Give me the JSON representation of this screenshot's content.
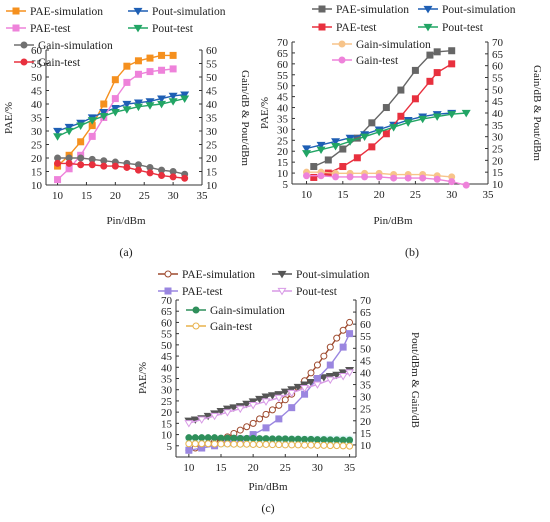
{
  "chart_data": [
    {
      "panel_label": "(a)",
      "type": "line",
      "xlabel": "Pin/dBm",
      "ylabel_left": "PAE/%",
      "ylabel_right": "Gain/dB & Pout/dBm",
      "xlim": [
        8,
        35
      ],
      "xticks": [
        "10",
        "15",
        "20",
        "25",
        "30",
        "35"
      ],
      "ylim_left": [
        10,
        60
      ],
      "yticks_left": [
        "10",
        "15",
        "20",
        "25",
        "30",
        "35",
        "40",
        "45",
        "50",
        "55",
        "60"
      ],
      "ylim_right": [
        10,
        60
      ],
      "yticks_right": [
        "10",
        "15",
        "20",
        "25",
        "30",
        "35",
        "40",
        "45",
        "50",
        "55",
        "60"
      ],
      "legend": "top-left",
      "series": [
        {
          "name": "PAE-simulation",
          "axis": "left",
          "color": "#F5901E",
          "marker": "square",
          "open": false,
          "x": [
            10,
            12,
            14,
            16,
            18,
            20,
            22,
            24,
            26,
            28,
            30
          ],
          "y": [
            17,
            21,
            26,
            32,
            40,
            49,
            54,
            56,
            57,
            58,
            58
          ]
        },
        {
          "name": "Pout-simulation",
          "axis": "right",
          "color": "#1E5FB4",
          "marker": "tri-down",
          "open": false,
          "x": [
            10,
            12,
            14,
            16,
            18,
            20,
            22,
            24,
            26,
            28,
            30,
            32
          ],
          "y": [
            30,
            31.5,
            33,
            35,
            37,
            38.5,
            40,
            40.5,
            41,
            42,
            43,
            43.5
          ]
        },
        {
          "name": "PAE-test",
          "axis": "left",
          "color": "#EE82DA",
          "marker": "square",
          "open": false,
          "x": [
            10,
            12,
            14,
            16,
            18,
            20,
            22,
            24,
            26,
            28,
            30
          ],
          "y": [
            12,
            16,
            21,
            28,
            35,
            42,
            48,
            51,
            52,
            52.5,
            53
          ]
        },
        {
          "name": "Pout-test",
          "axis": "right",
          "color": "#22A565",
          "marker": "tri-down",
          "open": false,
          "x": [
            10,
            12,
            14,
            16,
            18,
            20,
            22,
            24,
            26,
            28,
            30,
            32
          ],
          "y": [
            28,
            30,
            32,
            34,
            35.5,
            37,
            38,
            39,
            39.5,
            40,
            41,
            42
          ]
        },
        {
          "name": "Gain-simulation",
          "axis": "right",
          "color": "#707070",
          "marker": "circle",
          "open": false,
          "x": [
            10,
            12,
            14,
            16,
            18,
            20,
            22,
            24,
            26,
            28,
            30,
            32
          ],
          "y": [
            20,
            20,
            20,
            19.5,
            19,
            18.5,
            18,
            17.5,
            16.5,
            15.5,
            15,
            14
          ]
        },
        {
          "name": "Gain-test",
          "axis": "right",
          "color": "#E8303E",
          "marker": "circle",
          "open": false,
          "x": [
            10,
            12,
            14,
            16,
            18,
            20,
            22,
            24,
            26,
            28,
            30,
            32
          ],
          "y": [
            18,
            18,
            17.5,
            17.5,
            17,
            17,
            16.5,
            15.5,
            14.5,
            13.5,
            13,
            12.5
          ]
        }
      ]
    },
    {
      "panel_label": "(b)",
      "type": "line",
      "xlabel": "Pin/dBm",
      "ylabel_left": "PAE/%",
      "ylabel_right": "Gain/dB & Pout/dBm",
      "xlim": [
        8,
        35
      ],
      "xticks": [
        "10",
        "15",
        "20",
        "25",
        "30",
        "35"
      ],
      "ylim_left": [
        5,
        70
      ],
      "yticks_left": [
        "5",
        "10",
        "15",
        "20",
        "25",
        "30",
        "35",
        "40",
        "45",
        "50",
        "55",
        "60",
        "65",
        "70"
      ],
      "ylim_right": [
        10,
        70
      ],
      "yticks_right": [
        "10",
        "15",
        "20",
        "25",
        "30",
        "35",
        "40",
        "45",
        "50",
        "55",
        "60",
        "65",
        "70"
      ],
      "legend": "top",
      "series": [
        {
          "name": "PAE-simulation",
          "axis": "left",
          "color": "#666666",
          "marker": "square",
          "open": false,
          "x": [
            11,
            13,
            15,
            17,
            19,
            21,
            23,
            25,
            27,
            28,
            30
          ],
          "y": [
            13,
            16,
            21,
            26,
            33,
            40,
            48,
            57,
            64,
            65.5,
            66
          ]
        },
        {
          "name": "Pout-simulation",
          "axis": "right",
          "color": "#1E5FB4",
          "marker": "tri-down",
          "open": false,
          "x": [
            10,
            12,
            14,
            16,
            18,
            20,
            22,
            24,
            26,
            28,
            30
          ],
          "y": [
            25,
            26.5,
            28,
            29.5,
            31,
            33,
            35,
            37,
            38.5,
            39.5,
            40
          ]
        },
        {
          "name": "PAE-test",
          "axis": "left",
          "color": "#E8303E",
          "marker": "square",
          "open": false,
          "x": [
            11,
            13,
            15,
            17,
            19,
            21,
            23,
            25,
            27,
            28,
            30
          ],
          "y": [
            8,
            10,
            13,
            17,
            22,
            28,
            36,
            44,
            52,
            56,
            60
          ]
        },
        {
          "name": "Pout-test",
          "axis": "right",
          "color": "#22A565",
          "marker": "tri-down",
          "open": false,
          "x": [
            10,
            12,
            14,
            16,
            18,
            20,
            22,
            24,
            26,
            28,
            30,
            32
          ],
          "y": [
            23,
            24.5,
            26,
            28,
            30,
            32,
            34,
            36,
            37.5,
            38.5,
            39.5,
            40
          ]
        },
        {
          "name": "Gain-simulation",
          "axis": "right",
          "color": "#F7C48A",
          "marker": "circle",
          "open": false,
          "x": [
            10,
            12,
            14,
            16,
            18,
            20,
            22,
            24,
            26,
            28,
            30
          ],
          "y": [
            15,
            15,
            14.5,
            14.5,
            14.5,
            14.5,
            14,
            14,
            14,
            13.5,
            13
          ]
        },
        {
          "name": "Gain-test",
          "axis": "right",
          "color": "#EE82DA",
          "marker": "circle",
          "open": false,
          "x": [
            10,
            12,
            14,
            16,
            18,
            20,
            22,
            24,
            26,
            28,
            30,
            32
          ],
          "y": [
            13.5,
            13.5,
            13,
            13,
            13,
            13,
            12.5,
            12.5,
            12.5,
            12,
            11,
            9.5
          ]
        }
      ]
    },
    {
      "panel_label": "(c)",
      "type": "line",
      "xlabel": "Pin/dBm",
      "ylabel_left": "PAE/%",
      "ylabel_right": "Pout/dBm & Gain/dB",
      "xlim": [
        8,
        36
      ],
      "xticks": [
        "10",
        "15",
        "20",
        "25",
        "30",
        "35"
      ],
      "ylim_left": [
        0,
        70
      ],
      "yticks_left": [
        "5",
        "10",
        "15",
        "20",
        "25",
        "30",
        "35",
        "40",
        "45",
        "50",
        "55",
        "60",
        "65",
        "70"
      ],
      "ylim_right": [
        5,
        70
      ],
      "yticks_right": [
        "10",
        "15",
        "20",
        "25",
        "30",
        "35",
        "40",
        "45",
        "50",
        "55",
        "60",
        "65",
        "70"
      ],
      "legend": "top-left",
      "series": [
        {
          "name": "PAE-simulation",
          "axis": "left",
          "color": "#9E4A2E",
          "marker": "circle",
          "open": true,
          "x": [
            10,
            11,
            12,
            13,
            14,
            15,
            16,
            17,
            18,
            19,
            20,
            21,
            22,
            23,
            24,
            25,
            26,
            27,
            28,
            29,
            30,
            31,
            32,
            33,
            34,
            35
          ],
          "y": [
            3,
            4,
            5,
            6,
            7,
            8,
            9,
            10.5,
            12,
            13.5,
            15,
            17,
            19,
            21,
            23,
            25.5,
            28,
            31,
            34,
            37.5,
            41,
            45,
            49,
            53,
            56.5,
            60
          ]
        },
        {
          "name": "Pout-simulation",
          "axis": "right",
          "color": "#555555",
          "marker": "tri-down",
          "open": false,
          "x": [
            10,
            11,
            12,
            13,
            14,
            15,
            16,
            17,
            18,
            19,
            20,
            21,
            22,
            23,
            24,
            25,
            26,
            27,
            28,
            29,
            30,
            31,
            32,
            33,
            34,
            35
          ],
          "y": [
            20,
            20.5,
            21,
            22,
            23,
            24,
            25,
            25.5,
            26,
            27,
            28,
            29,
            30,
            30.5,
            31,
            32,
            33,
            34,
            35,
            36,
            37,
            38,
            38.5,
            39,
            40,
            41
          ]
        },
        {
          "name": "PAE-test",
          "axis": "left",
          "color": "#9A86E0",
          "marker": "square",
          "open": false,
          "x": [
            10,
            12,
            14,
            16,
            18,
            20,
            22,
            24,
            26,
            28,
            30,
            32,
            34,
            35
          ],
          "y": [
            3,
            4,
            5,
            6.5,
            8,
            10,
            13,
            17,
            22,
            28,
            35,
            41,
            49,
            55
          ]
        },
        {
          "name": "Pout-test",
          "axis": "right",
          "color": "#D89AE6",
          "marker": "tri-down",
          "open": true,
          "x": [
            10,
            12,
            14,
            16,
            18,
            20,
            22,
            24,
            26,
            28,
            30,
            32,
            34,
            35
          ],
          "y": [
            19,
            20.5,
            22,
            23.5,
            25,
            26.5,
            28,
            29.5,
            31.5,
            33.5,
            35,
            37,
            38.5,
            40
          ]
        },
        {
          "name": "Gain-simulation",
          "axis": "right",
          "color": "#2F8F5B",
          "marker": "circle",
          "open": false,
          "x": [
            10,
            11,
            12,
            13,
            14,
            15,
            16,
            17,
            18,
            19,
            20,
            21,
            22,
            23,
            24,
            25,
            26,
            27,
            28,
            29,
            30,
            31,
            32,
            33,
            34,
            35
          ],
          "y": [
            13,
            13,
            13,
            13,
            13,
            12.8,
            12.8,
            12.8,
            12.7,
            12.7,
            12.7,
            12.6,
            12.6,
            12.5,
            12.5,
            12.5,
            12.4,
            12.4,
            12.3,
            12.3,
            12.2,
            12.2,
            12.1,
            12.1,
            12,
            12
          ]
        },
        {
          "name": "Gain-test",
          "axis": "right",
          "color": "#E8B24C",
          "marker": "circle",
          "open": true,
          "x": [
            10,
            11,
            12,
            13,
            14,
            15,
            16,
            17,
            18,
            19,
            20,
            21,
            22,
            23,
            24,
            25,
            26,
            27,
            28,
            29,
            30,
            31,
            32,
            33,
            34,
            35
          ],
          "y": [
            10.5,
            10.5,
            10.5,
            10.5,
            10.4,
            10.4,
            10.4,
            10.3,
            10.3,
            10.3,
            10.2,
            10.2,
            10.2,
            10.1,
            10.1,
            10,
            10,
            10,
            9.9,
            9.9,
            9.8,
            9.8,
            9.7,
            9.7,
            9.6,
            9.5
          ]
        }
      ]
    }
  ]
}
